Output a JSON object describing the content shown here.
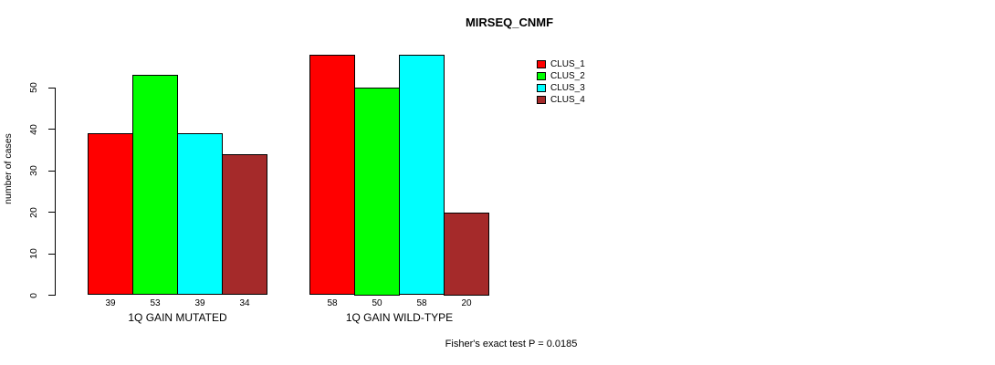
{
  "chart_data": {
    "type": "bar",
    "title": "MIRSEQ_CNMF",
    "ylabel": "number of cases",
    "xlabel": "",
    "ylim": [
      0,
      58
    ],
    "yticks": [
      0,
      10,
      20,
      30,
      40,
      50
    ],
    "grid": false,
    "legend_position": "right-inside-top",
    "bar_value_labels": true,
    "categories": [
      "1Q GAIN MUTATED",
      "1Q GAIN WILD-TYPE"
    ],
    "series": [
      {
        "name": "CLUS_1",
        "color": "#ff0000",
        "values": [
          39,
          58
        ]
      },
      {
        "name": "CLUS_2",
        "color": "#00ff00",
        "values": [
          53,
          50
        ]
      },
      {
        "name": "CLUS_3",
        "color": "#00ffff",
        "values": [
          39,
          58
        ]
      },
      {
        "name": "CLUS_4",
        "color": "#a52a2a",
        "values": [
          34,
          20
        ]
      }
    ],
    "annotation": "Fisher's exact test P = 0.0185",
    "colors": {
      "background": "#ffffff",
      "axis": "#000000",
      "bar_border": "#000000",
      "text": "#000000"
    }
  }
}
